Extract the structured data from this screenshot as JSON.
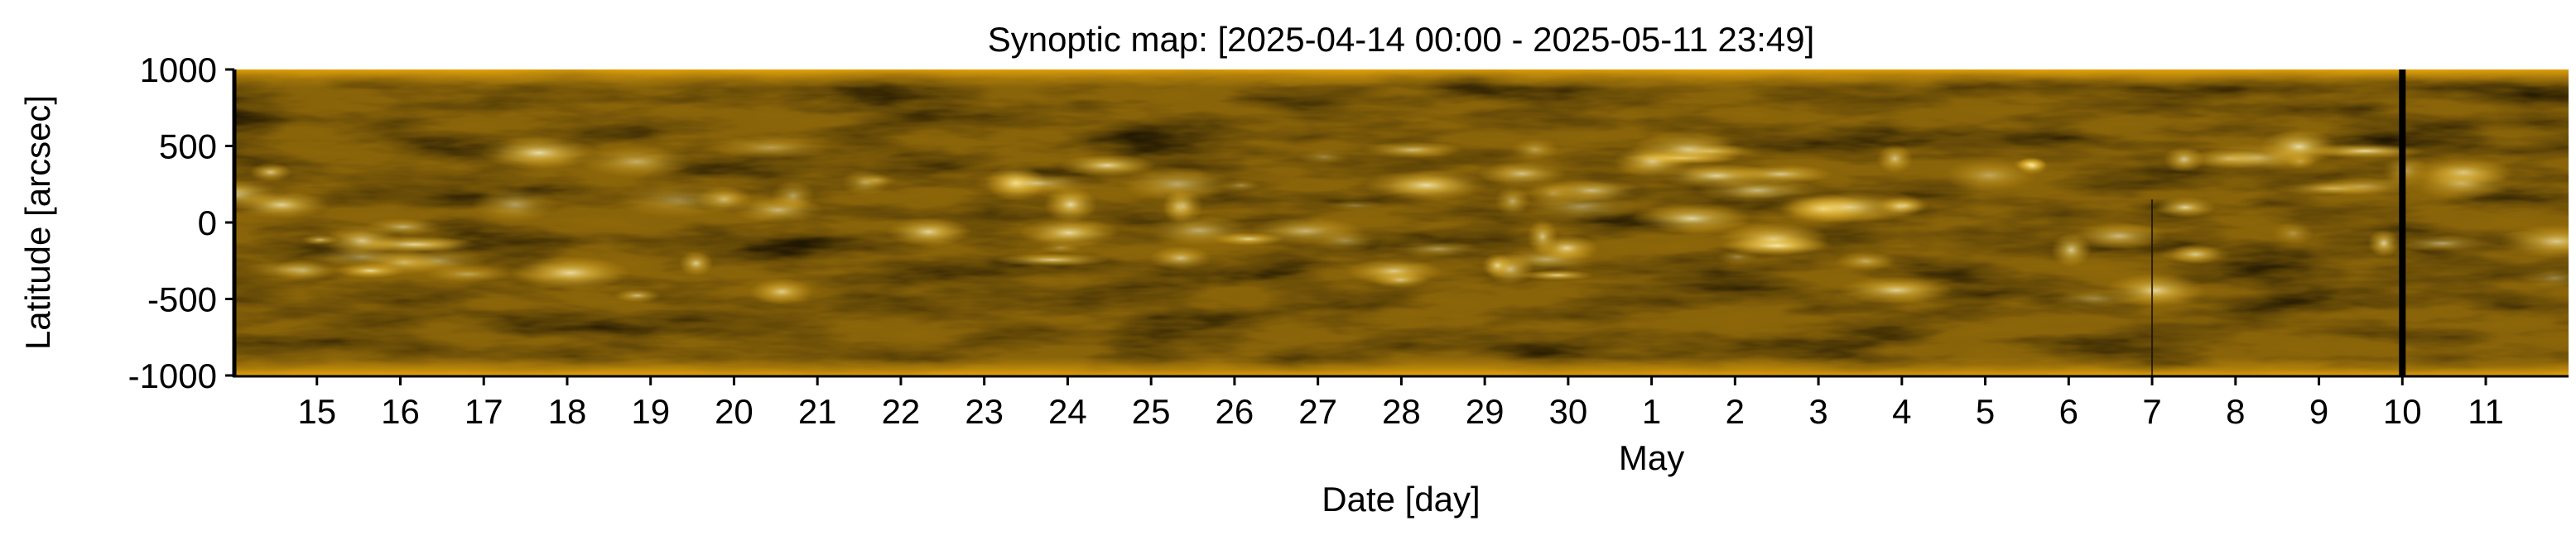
{
  "chart_data": {
    "type": "heatmap",
    "title": "Synoptic map: [2025-04-14 00:00 - 2025-05-11 23:49]",
    "xlabel": "Date [day]",
    "ylabel": "Latitude [arcsec]",
    "x_range": [
      "2025-04-14 00:00",
      "2025-05-11 23:49"
    ],
    "ylim": [
      -1000,
      1000
    ],
    "y_ticks": [
      1000,
      500,
      0,
      -500,
      -1000
    ],
    "x_ticks": [
      {
        "date": "2025-04-15",
        "label": "15"
      },
      {
        "date": "2025-04-16",
        "label": "16"
      },
      {
        "date": "2025-04-17",
        "label": "17"
      },
      {
        "date": "2025-04-18",
        "label": "18"
      },
      {
        "date": "2025-04-19",
        "label": "19"
      },
      {
        "date": "2025-04-20",
        "label": "20"
      },
      {
        "date": "2025-04-21",
        "label": "21"
      },
      {
        "date": "2025-04-22",
        "label": "22"
      },
      {
        "date": "2025-04-23",
        "label": "23"
      },
      {
        "date": "2025-04-24",
        "label": "24"
      },
      {
        "date": "2025-04-25",
        "label": "25"
      },
      {
        "date": "2025-04-26",
        "label": "26"
      },
      {
        "date": "2025-04-27",
        "label": "27"
      },
      {
        "date": "2025-04-28",
        "label": "28"
      },
      {
        "date": "2025-04-29",
        "label": "29"
      },
      {
        "date": "2025-04-30",
        "label": "30"
      },
      {
        "date": "2025-05-01",
        "label": "1"
      },
      {
        "date": "2025-05-02",
        "label": "2"
      },
      {
        "date": "2025-05-03",
        "label": "3"
      },
      {
        "date": "2025-05-04",
        "label": "4"
      },
      {
        "date": "2025-05-05",
        "label": "5"
      },
      {
        "date": "2025-05-06",
        "label": "6"
      },
      {
        "date": "2025-05-07",
        "label": "7"
      },
      {
        "date": "2025-05-08",
        "label": "8"
      },
      {
        "date": "2025-05-09",
        "label": "9"
      },
      {
        "date": "2025-05-10",
        "label": "10"
      },
      {
        "date": "2025-05-11",
        "label": "11"
      }
    ],
    "month_label": {
      "date": "2025-05-01",
      "label": "May"
    },
    "data_gaps": [
      {
        "date": "2025-05-10 00:00",
        "style": "thick"
      },
      {
        "date": "2025-05-07 00:00",
        "style": "thin",
        "lat_range": [
          -1000,
          150
        ]
      }
    ],
    "colormap": {
      "dark": "#5c4106",
      "mid": "#b9830b",
      "bright": "#ffeb8c",
      "edge": "#f5b20a"
    }
  }
}
